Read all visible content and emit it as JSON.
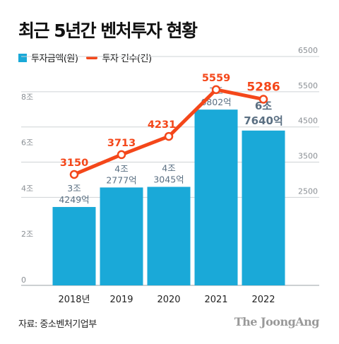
{
  "title": "최근 5년간 벤처투자 현황",
  "source": "자료: 중소벤처기업부",
  "logo_text": "The JoongAng",
  "colors": {
    "bar": "#1aa9d8",
    "line": "#f4471a",
    "bar_label": "#5a6f82",
    "grid": "#cfd3d6",
    "axis_text": "#8a8f94"
  },
  "chart_data": {
    "type": "bar",
    "categories": [
      "2018년",
      "2019",
      "2020",
      "2021",
      "2022"
    ],
    "legend": [
      "투자금액(원)",
      "투자 건수(건)"
    ],
    "series": [
      {
        "name": "투자금액(원)",
        "type": "bar",
        "axis": "left",
        "values": [
          34249,
          42777,
          43045,
          76802,
          67640
        ],
        "unit": "억원",
        "labels": [
          [
            "3조",
            "4249억"
          ],
          [
            "4조",
            "2777억"
          ],
          [
            "4조",
            "3045억"
          ],
          [
            "7조",
            "6802억"
          ],
          [
            "6조",
            "7640억"
          ]
        ]
      },
      {
        "name": "투자 건수(건)",
        "type": "line",
        "axis": "right",
        "values": [
          3150,
          3713,
          4231,
          5559,
          5286
        ],
        "labels": [
          "3150",
          "3713",
          "4231",
          "5559",
          "5286"
        ]
      }
    ],
    "left_axis": {
      "min": 0,
      "max": 100000,
      "ticks": [
        0,
        20000,
        40000,
        60000,
        80000
      ],
      "tick_labels": [
        "0",
        "2조",
        "4조",
        "6조",
        "8조"
      ]
    },
    "right_axis": {
      "min": 0,
      "max": 6500,
      "ticks": [
        2500,
        3500,
        4500,
        5500,
        6500
      ],
      "tick_labels": [
        "2500",
        "3500",
        "4500",
        "5500",
        "6500"
      ]
    },
    "grid": true,
    "legend_position": "top-left"
  }
}
